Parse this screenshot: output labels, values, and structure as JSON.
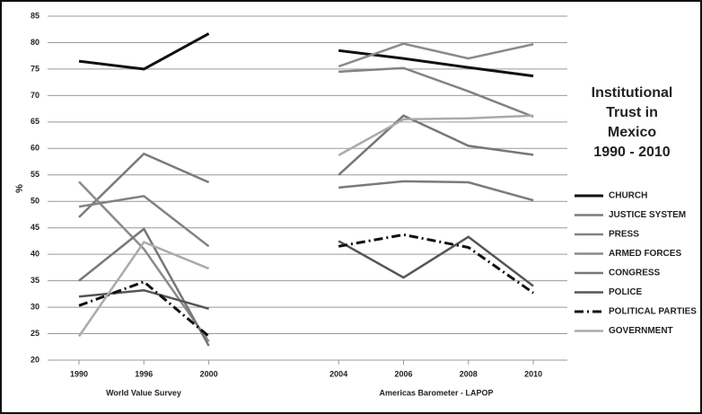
{
  "chart_data": {
    "type": "line",
    "title": [
      "Institutional",
      "Trust in",
      "Mexico",
      "1990 - 2010"
    ],
    "y_label": "%",
    "group_labels": [
      "World Value Survey",
      "Americas Barometer - LAPOP"
    ],
    "categories": [
      "1990",
      "1996",
      "2000",
      null,
      "2004",
      "2006",
      "2008",
      "2010"
    ],
    "ylim": [
      20,
      85
    ],
    "yticks": [
      20,
      25,
      30,
      35,
      40,
      45,
      50,
      55,
      60,
      65,
      70,
      75,
      80,
      85
    ],
    "grid": true,
    "legend": "right",
    "series": [
      {
        "name": "CHURCH",
        "color": "#111111",
        "width": 3,
        "dash": false,
        "values": [
          76.5,
          75,
          81.7,
          null,
          78.5,
          77,
          75.3,
          73.7
        ]
      },
      {
        "name": "JUSTICE SYSTEM",
        "color": "#7a7a7a",
        "width": 2.5,
        "dash": false,
        "values": [
          47,
          59,
          53.6,
          null,
          52.6,
          53.8,
          53.6,
          50.2
        ]
      },
      {
        "name": "PRESS",
        "color": "#828282",
        "width": 2.5,
        "dash": false,
        "values": [
          49,
          51,
          41.5,
          null,
          74.5,
          75.2,
          70.8,
          66
        ]
      },
      {
        "name": "ARMED FORCES",
        "color": "#8a8a8a",
        "width": 2.5,
        "dash": false,
        "values": [
          53.7,
          41,
          23.5,
          null,
          75.5,
          79.8,
          77,
          79.7
        ]
      },
      {
        "name": "CONGRESS",
        "color": "#777777",
        "width": 2.5,
        "dash": false,
        "values": [
          35,
          44.8,
          22.7,
          null,
          55,
          66.2,
          60.5,
          58.8
        ]
      },
      {
        "name": "POLICE",
        "color": "#555555",
        "width": 2.5,
        "dash": false,
        "values": [
          32,
          33.2,
          29.7,
          null,
          42.5,
          35.6,
          43.3,
          34
        ]
      },
      {
        "name": "POLITICAL PARTIES",
        "color": "#111111",
        "width": 3,
        "dash": true,
        "values": [
          30.3,
          34.8,
          24.5,
          null,
          41.5,
          43.7,
          41.3,
          32.7
        ]
      },
      {
        "name": "GOVERNMENT",
        "color": "#aaaaaa",
        "width": 2.5,
        "dash": false,
        "values": [
          24.5,
          42.3,
          37.3,
          null,
          58.7,
          65.5,
          65.7,
          66.2
        ]
      }
    ]
  }
}
